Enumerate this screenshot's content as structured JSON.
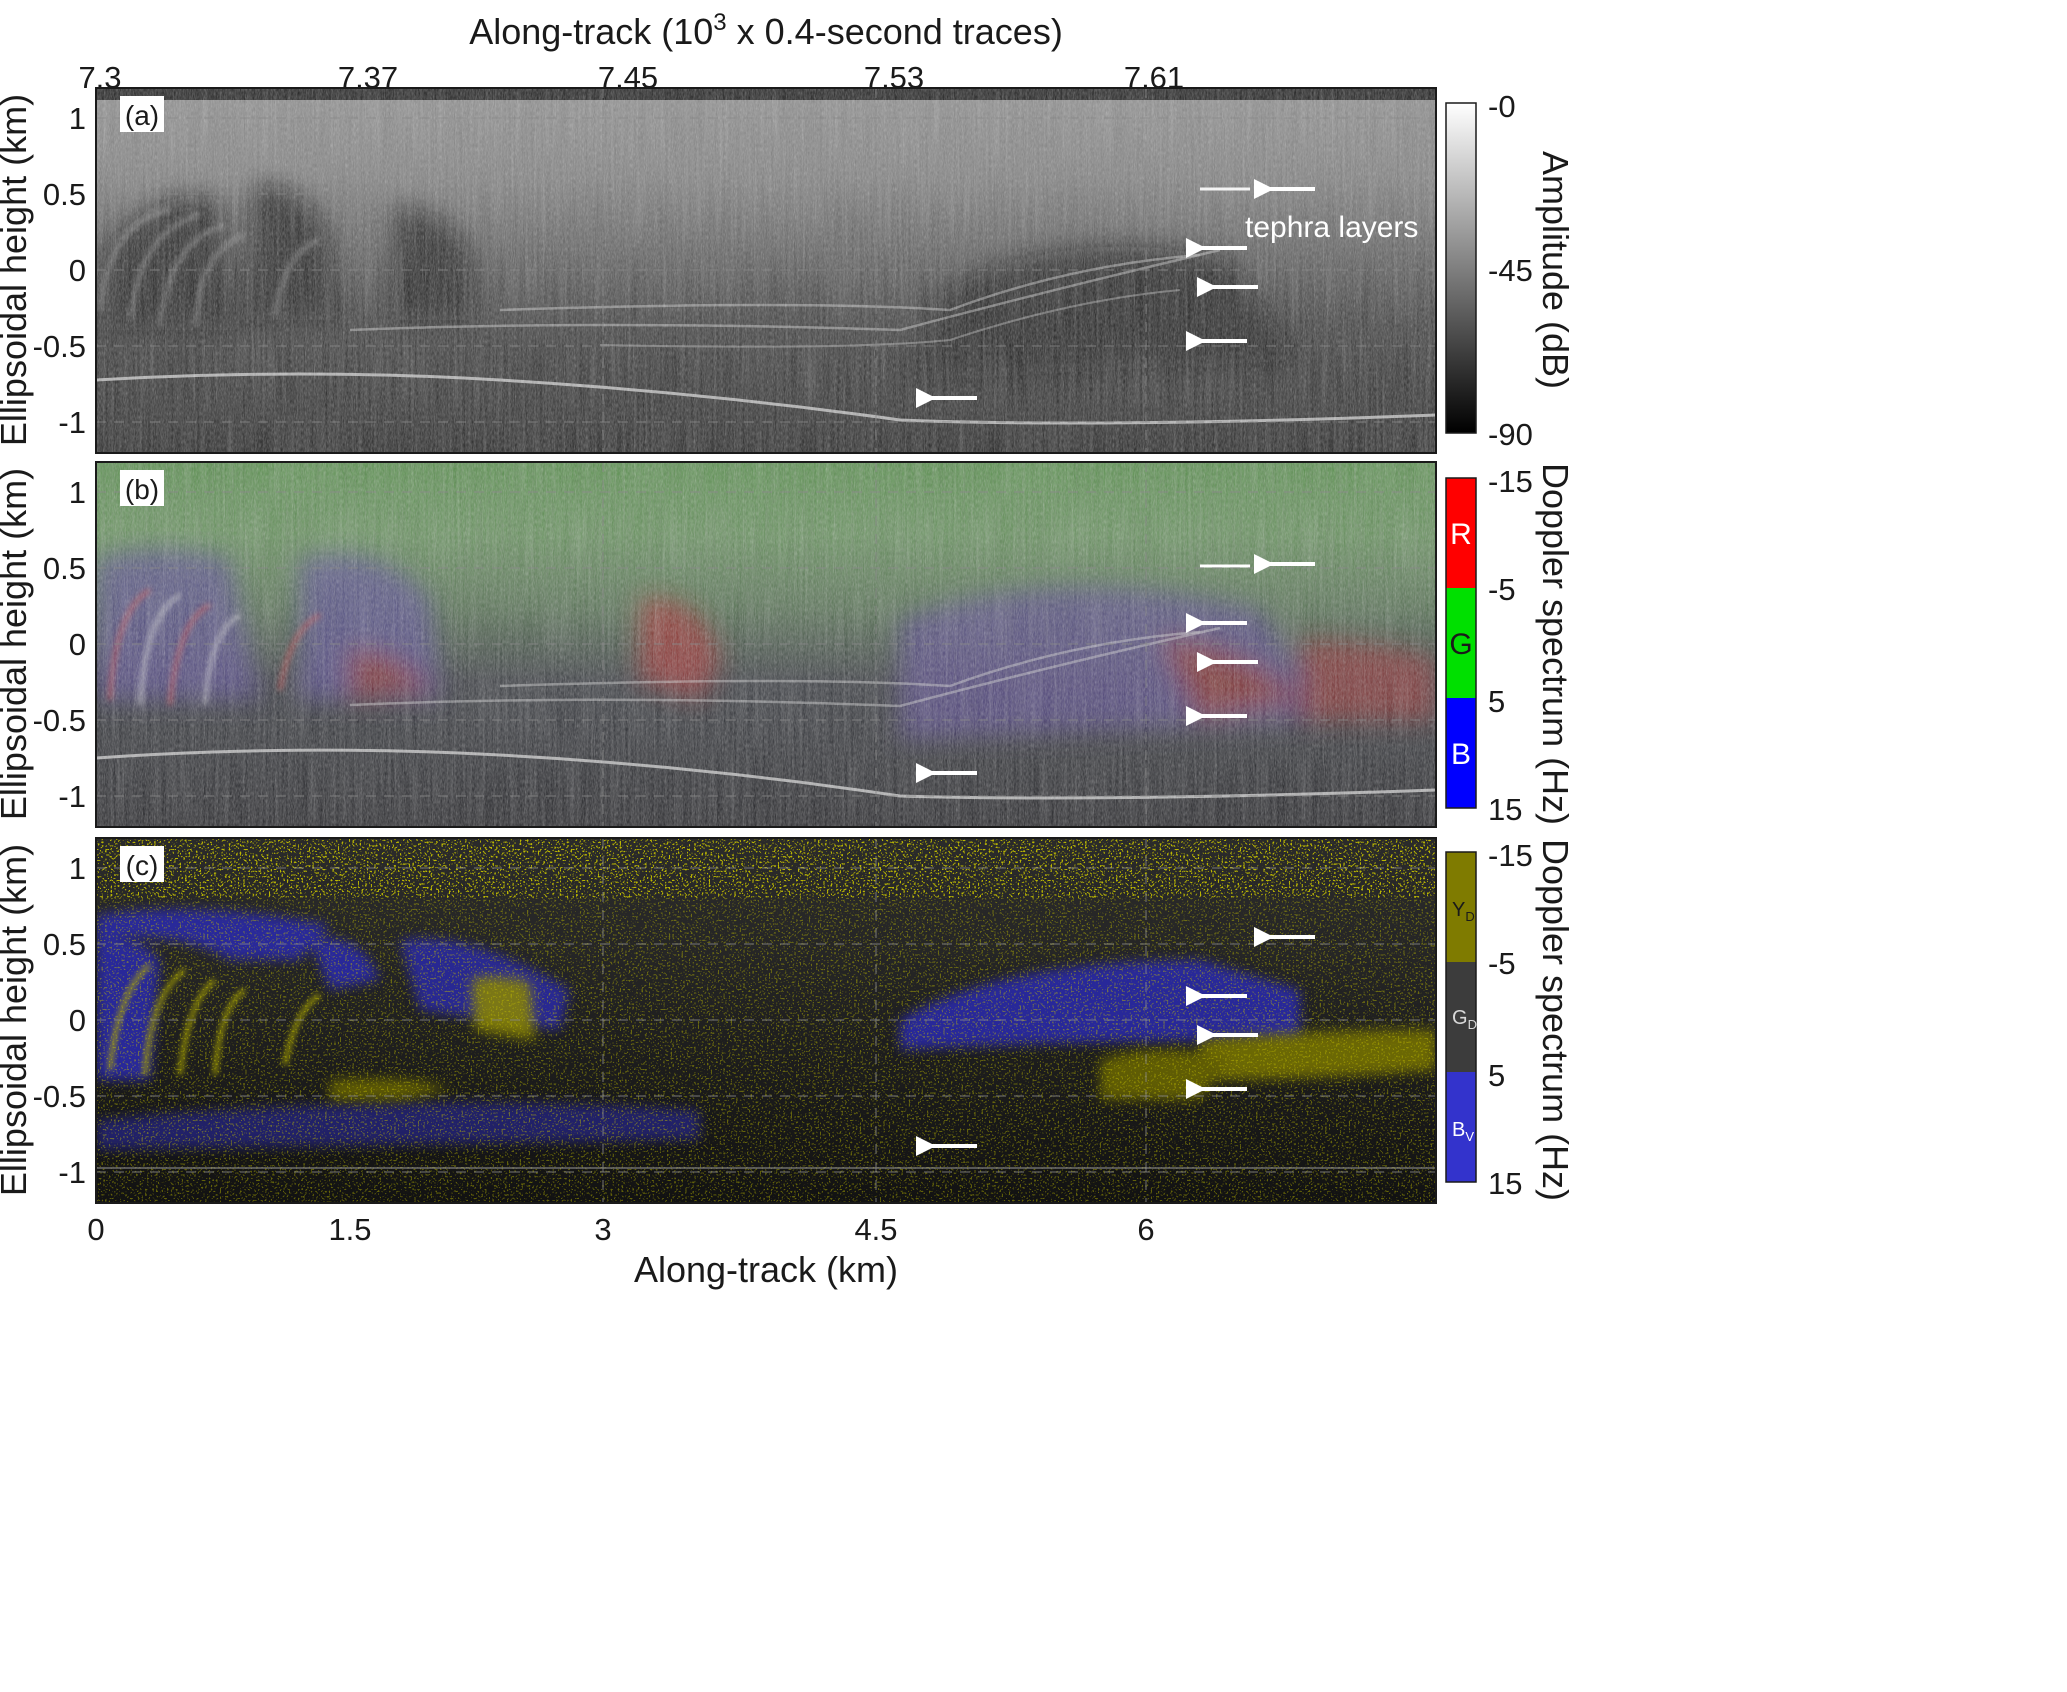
{
  "figure": {
    "top_axis": {
      "label_pre": "Along-track (10",
      "label_sup": "3",
      "label_post": " x 0.4-second traces)",
      "ticks": [
        "7.3",
        "7.37",
        "7.45",
        "7.53",
        "7.61"
      ]
    },
    "bottom_axis": {
      "label": "Along-track (km)",
      "ticks": [
        "0",
        "1.5",
        "3",
        "4.5",
        "6"
      ]
    },
    "y_axis_label": "Ellipsoidal height (km)",
    "annotation": "tephra layers",
    "panels": [
      {
        "tag": "(a)",
        "render": "grayscale radargram",
        "colorbar": {
          "label": "Amplitude (dB)",
          "ticks": [
            "-0",
            "-45",
            "-90"
          ],
          "colors": [
            "#ffffff",
            "#000000"
          ]
        }
      },
      {
        "tag": "(b)",
        "render": "RGB Doppler composite",
        "colorbar": {
          "label": "Doppler spectrum (Hz)",
          "ticks": [
            "-15",
            "-5",
            "5",
            "15"
          ],
          "segments": [
            {
              "label": "R",
              "color": "#ff0000"
            },
            {
              "label": "G",
              "color": "#00e000"
            },
            {
              "label": "B",
              "color": "#0000ff"
            }
          ]
        }
      },
      {
        "tag": "(c)",
        "render": "classified Doppler composite",
        "colorbar": {
          "label": "Doppler spectrum (Hz)",
          "ticks": [
            "-15",
            "-5",
            "5",
            "15"
          ],
          "segments": [
            {
              "label": "Y",
              "sub": "D",
              "color": "#7f7b00"
            },
            {
              "label": "G",
              "sub": "D",
              "color": "#3c3c3c"
            },
            {
              "label": "B",
              "sub": "V",
              "color": "#3333cc"
            }
          ]
        }
      }
    ]
  },
  "chart_data": [
    {
      "type": "heatmap",
      "panel": "(a)",
      "xlabel": "Along-track (km)",
      "ylabel": "Ellipsoidal height (km)",
      "xlim": [
        0,
        7.6
      ],
      "ylim": [
        -1.2,
        1.2
      ],
      "yticks": [
        1,
        0.5,
        0,
        -0.5,
        -1
      ],
      "xticks": [
        0,
        1.5,
        3,
        4.5,
        6
      ],
      "top_xticks": [
        7.3,
        7.37,
        7.45,
        7.53,
        7.61
      ],
      "colorscale": {
        "label": "Amplitude (dB)",
        "range": [
          -90,
          0
        ]
      },
      "arrows": [
        {
          "x": 6.5,
          "y": 0.52
        },
        {
          "x": 6.3,
          "y": 0.15
        },
        {
          "x": 6.4,
          "y": -0.12
        },
        {
          "x": 6.4,
          "y": -0.48
        },
        {
          "x": 4.95,
          "y": -0.86
        }
      ],
      "grid": true
    },
    {
      "type": "heatmap",
      "panel": "(b)",
      "xlabel": "Along-track (km)",
      "ylabel": "Ellipsoidal height (km)",
      "xlim": [
        0,
        7.6
      ],
      "ylim": [
        -1.2,
        1.2
      ],
      "yticks": [
        1,
        0.5,
        0,
        -0.5,
        -1
      ],
      "colorscale": {
        "label": "Doppler spectrum (Hz)",
        "range": [
          -15,
          15
        ],
        "bins": [
          "R",
          "G",
          "B"
        ]
      },
      "arrows": [
        {
          "x": 6.5,
          "y": 0.52
        },
        {
          "x": 6.3,
          "y": 0.15
        },
        {
          "x": 6.4,
          "y": -0.12
        },
        {
          "x": 6.4,
          "y": -0.48
        },
        {
          "x": 4.95,
          "y": -0.86
        }
      ],
      "grid": true
    },
    {
      "type": "heatmap",
      "panel": "(c)",
      "xlabel": "Along-track (km)",
      "ylabel": "Ellipsoidal height (km)",
      "xlim": [
        0,
        7.6
      ],
      "ylim": [
        -1.2,
        1.2
      ],
      "yticks": [
        1,
        0.5,
        0,
        -0.5,
        -1
      ],
      "colorscale": {
        "label": "Doppler spectrum (Hz)",
        "range": [
          -15,
          15
        ],
        "bins": [
          "YD",
          "GD",
          "BV"
        ]
      },
      "arrows": [
        {
          "x": 6.5,
          "y": 0.52
        },
        {
          "x": 6.3,
          "y": 0.15
        },
        {
          "x": 6.4,
          "y": -0.12
        },
        {
          "x": 6.4,
          "y": -0.48
        },
        {
          "x": 4.95,
          "y": -0.86
        }
      ],
      "grid": true
    }
  ]
}
